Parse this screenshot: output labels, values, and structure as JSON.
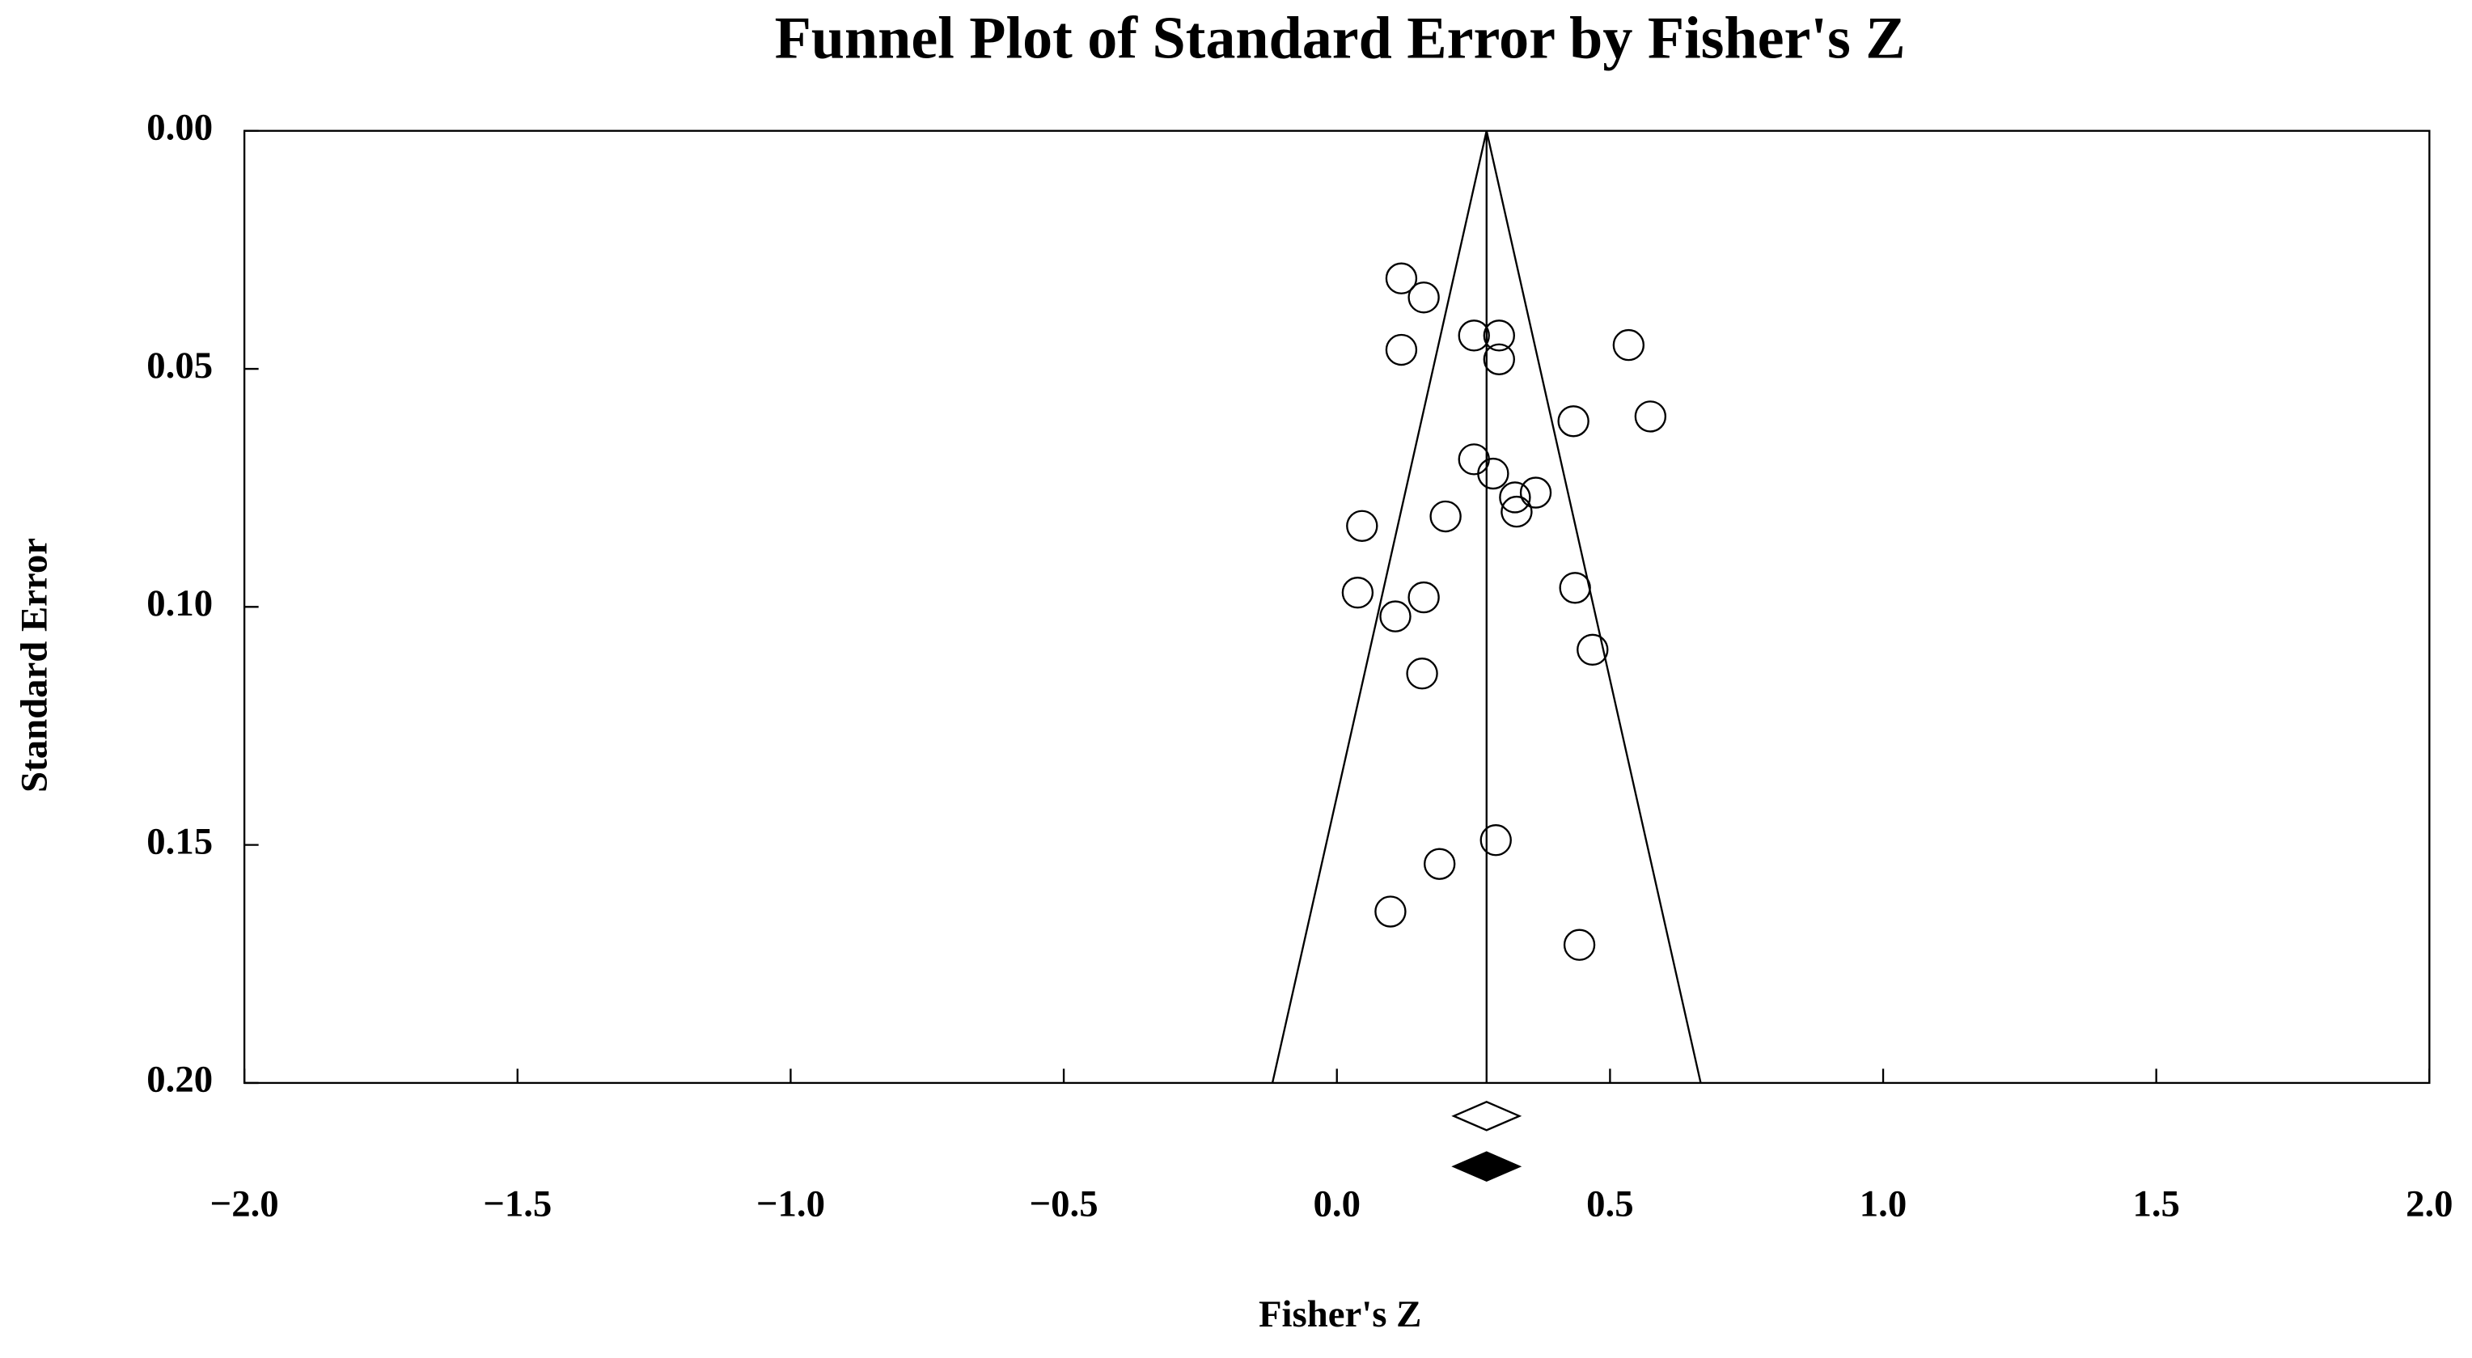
{
  "chart_data": {
    "type": "funnel",
    "title": "Funnel Plot of Standard Error by Fisher's Z",
    "x_label": "Fisher's Z",
    "y_label": "Standard Error",
    "xlim": [
      -2,
      2
    ],
    "ylim": [
      0,
      0.2
    ],
    "y_inverted": true,
    "xticks": [
      {
        "value": -2,
        "label": "−2.0"
      },
      {
        "value": -1.5,
        "label": "−1.5"
      },
      {
        "value": -1,
        "label": "−1.0"
      },
      {
        "value": -0.5,
        "label": "−0.5"
      },
      {
        "value": 0,
        "label": "0.0"
      },
      {
        "value": 0.5,
        "label": "0.5"
      },
      {
        "value": 1,
        "label": "1.0"
      },
      {
        "value": 1.5,
        "label": "1.5"
      },
      {
        "value": 2,
        "label": "2.0"
      }
    ],
    "yticks": [
      {
        "value": 0,
        "label": "0.00"
      },
      {
        "value": 0.05,
        "label": "0.05"
      },
      {
        "value": 0.1,
        "label": "0.10"
      },
      {
        "value": 0.15,
        "label": "0.15"
      },
      {
        "value": 0.2,
        "label": "0.20"
      }
    ],
    "x": [
      0.118,
      0.159,
      0.251,
      0.297,
      0.118,
      0.534,
      0.297,
      0.433,
      0.574,
      0.251,
      0.286,
      0.326,
      0.364,
      0.329,
      0.046,
      0.199,
      0.038,
      0.159,
      0.107,
      0.436,
      0.468,
      0.156,
      0.291,
      0.188,
      0.098,
      0.444
    ],
    "values": [
      0.031,
      0.035,
      0.043,
      0.043,
      0.046,
      0.045,
      0.048,
      0.061,
      0.06,
      0.069,
      0.072,
      0.077,
      0.076,
      0.08,
      0.083,
      0.081,
      0.097,
      0.098,
      0.102,
      0.096,
      0.109,
      0.114,
      0.149,
      0.154,
      0.164,
      0.171
    ],
    "mean": 0.274,
    "funnel": {
      "x": [
        -0.118,
        0.274,
        0.666
      ],
      "y": [
        0.2,
        0,
        0.2
      ]
    },
    "summary": [
      {
        "estimate": 0.274,
        "ci": [
          0.214,
          0.334
        ],
        "filled": false
      },
      {
        "estimate": 0.274,
        "ci": [
          0.214,
          0.334
        ],
        "filled": true
      }
    ]
  }
}
